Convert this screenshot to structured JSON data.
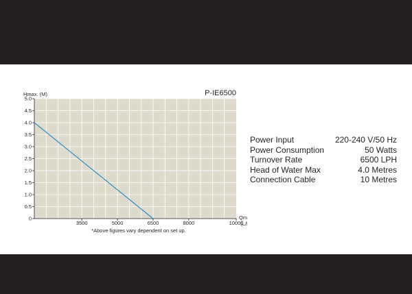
{
  "chart_data": {
    "type": "line",
    "title": "P-IE6500",
    "ylabel": "Hmax. (M)",
    "xlabel": "Qmax (L/h)",
    "xlabel_line1": "Qmax",
    "xlabel_line2": "(L/h)",
    "xlim": [
      1500,
      10000
    ],
    "ylim": [
      0,
      5.0
    ],
    "x_ticks": [
      3500,
      5000,
      6500,
      8000,
      10000
    ],
    "x_tick_labels": [
      "3500",
      "5000",
      "6500",
      "8000",
      "10000"
    ],
    "y_ticks": [
      0,
      0.5,
      1.0,
      1.5,
      2.0,
      2.5,
      3.0,
      3.5,
      4.0,
      4.5,
      5.0
    ],
    "y_tick_labels": [
      "0",
      "0.5",
      "1.0",
      "1.5",
      "2.0",
      "2.5",
      "3.0",
      "3.5",
      "4.0",
      "4.5",
      "5.0"
    ],
    "grid": true,
    "series": [
      {
        "x": [
          1500,
          6500
        ],
        "y": [
          4.0,
          0
        ],
        "color": "#2a8fc4"
      }
    ],
    "note": "*Above figures vary dependent on set up.",
    "plot_background": "#dedbcd",
    "grid_color": "#ffffff"
  },
  "specs": [
    {
      "label": "Power Input",
      "value": "220-240 V/50 Hz"
    },
    {
      "label": "Power  Consumption",
      "value": "50  Watts"
    },
    {
      "label": "Turnover Rate",
      "value": "6500 LPH"
    },
    {
      "label": "Head  of  Water Max",
      "value": "4.0 Metres"
    },
    {
      "label": "Connection  Cable",
      "value": "10  Metres"
    }
  ]
}
